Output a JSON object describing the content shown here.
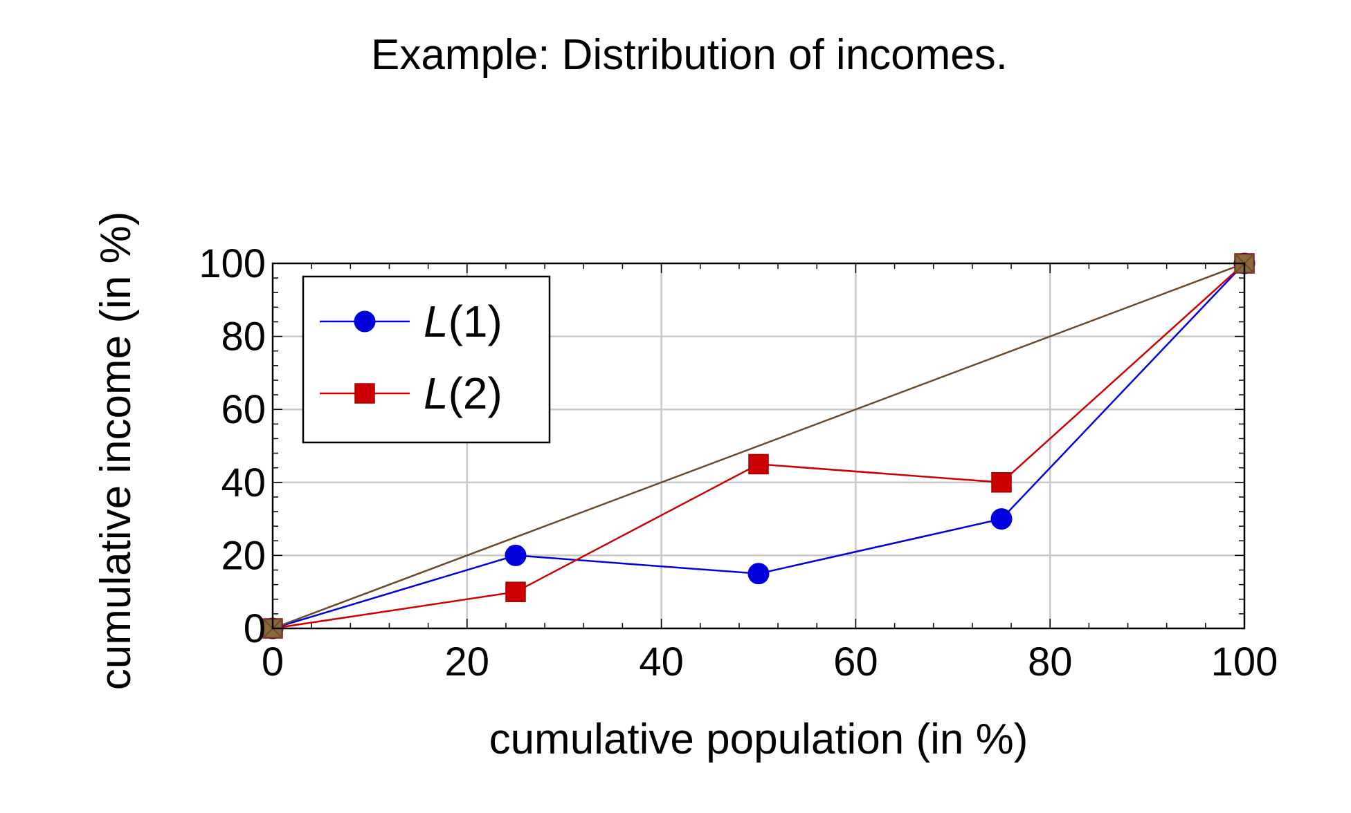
{
  "chart_data": {
    "type": "line",
    "title": "Example: Distribution of incomes.",
    "xlabel": "cumulative population (in %)",
    "ylabel": "cumulative income (in %)",
    "xlim": [
      0,
      100
    ],
    "ylim": [
      0,
      100
    ],
    "xticks": [
      0,
      20,
      40,
      60,
      80,
      100
    ],
    "yticks": [
      0,
      20,
      40,
      60,
      80,
      100
    ],
    "grid": true,
    "legend_position": "top-left",
    "series": [
      {
        "name": "L(1)",
        "legend_base": "L",
        "legend_arg": "1",
        "color": "#0000dd",
        "marker": "circle",
        "x": [
          0,
          25,
          50,
          75,
          100
        ],
        "y": [
          0,
          20,
          15,
          30,
          100
        ]
      },
      {
        "name": "L(2)",
        "legend_base": "L",
        "legend_arg": "2",
        "color": "#cc0000",
        "marker": "square",
        "x": [
          0,
          25,
          50,
          75,
          100
        ],
        "y": [
          0,
          10,
          45,
          40,
          100
        ]
      },
      {
        "color": "#6b4a2b",
        "marker": "x-square",
        "in_legend": false,
        "x": [
          0,
          100
        ],
        "y": [
          0,
          100
        ]
      }
    ]
  }
}
